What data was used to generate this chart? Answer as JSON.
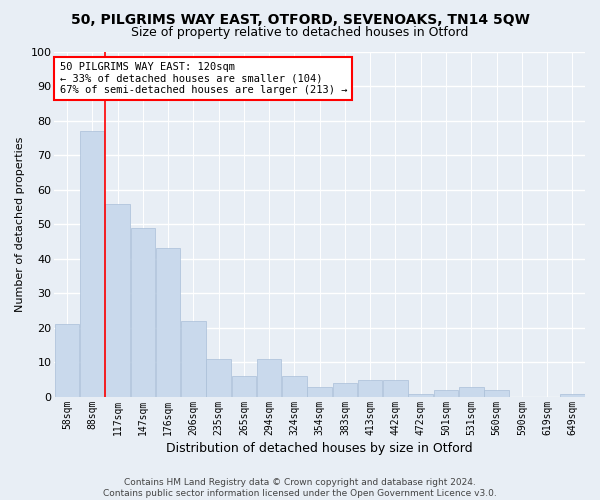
{
  "title": "50, PILGRIMS WAY EAST, OTFORD, SEVENOAKS, TN14 5QW",
  "subtitle": "Size of property relative to detached houses in Otford",
  "xlabel": "Distribution of detached houses by size in Otford",
  "ylabel": "Number of detached properties",
  "categories": [
    "58sqm",
    "88sqm",
    "117sqm",
    "147sqm",
    "176sqm",
    "206sqm",
    "235sqm",
    "265sqm",
    "294sqm",
    "324sqm",
    "354sqm",
    "383sqm",
    "413sqm",
    "442sqm",
    "472sqm",
    "501sqm",
    "531sqm",
    "560sqm",
    "590sqm",
    "619sqm",
    "649sqm"
  ],
  "values": [
    21,
    77,
    56,
    49,
    43,
    22,
    11,
    6,
    11,
    6,
    3,
    4,
    5,
    5,
    1,
    2,
    3,
    2,
    0,
    0,
    1
  ],
  "bar_color": "#c9d9ec",
  "bar_edge_color": "#aabfd8",
  "ylim": [
    0,
    100
  ],
  "yticks": [
    0,
    10,
    20,
    30,
    40,
    50,
    60,
    70,
    80,
    90,
    100
  ],
  "property_label": "50 PILGRIMS WAY EAST: 120sqm",
  "annotation_line1": "← 33% of detached houses are smaller (104)",
  "annotation_line2": "67% of semi-detached houses are larger (213) →",
  "vline_x_index": 1.5,
  "footer_line1": "Contains HM Land Registry data © Crown copyright and database right 2024.",
  "footer_line2": "Contains public sector information licensed under the Open Government Licence v3.0.",
  "background_color": "#e8eef5",
  "plot_background_color": "#e8eef5",
  "title_fontsize": 10,
  "subtitle_fontsize": 9
}
